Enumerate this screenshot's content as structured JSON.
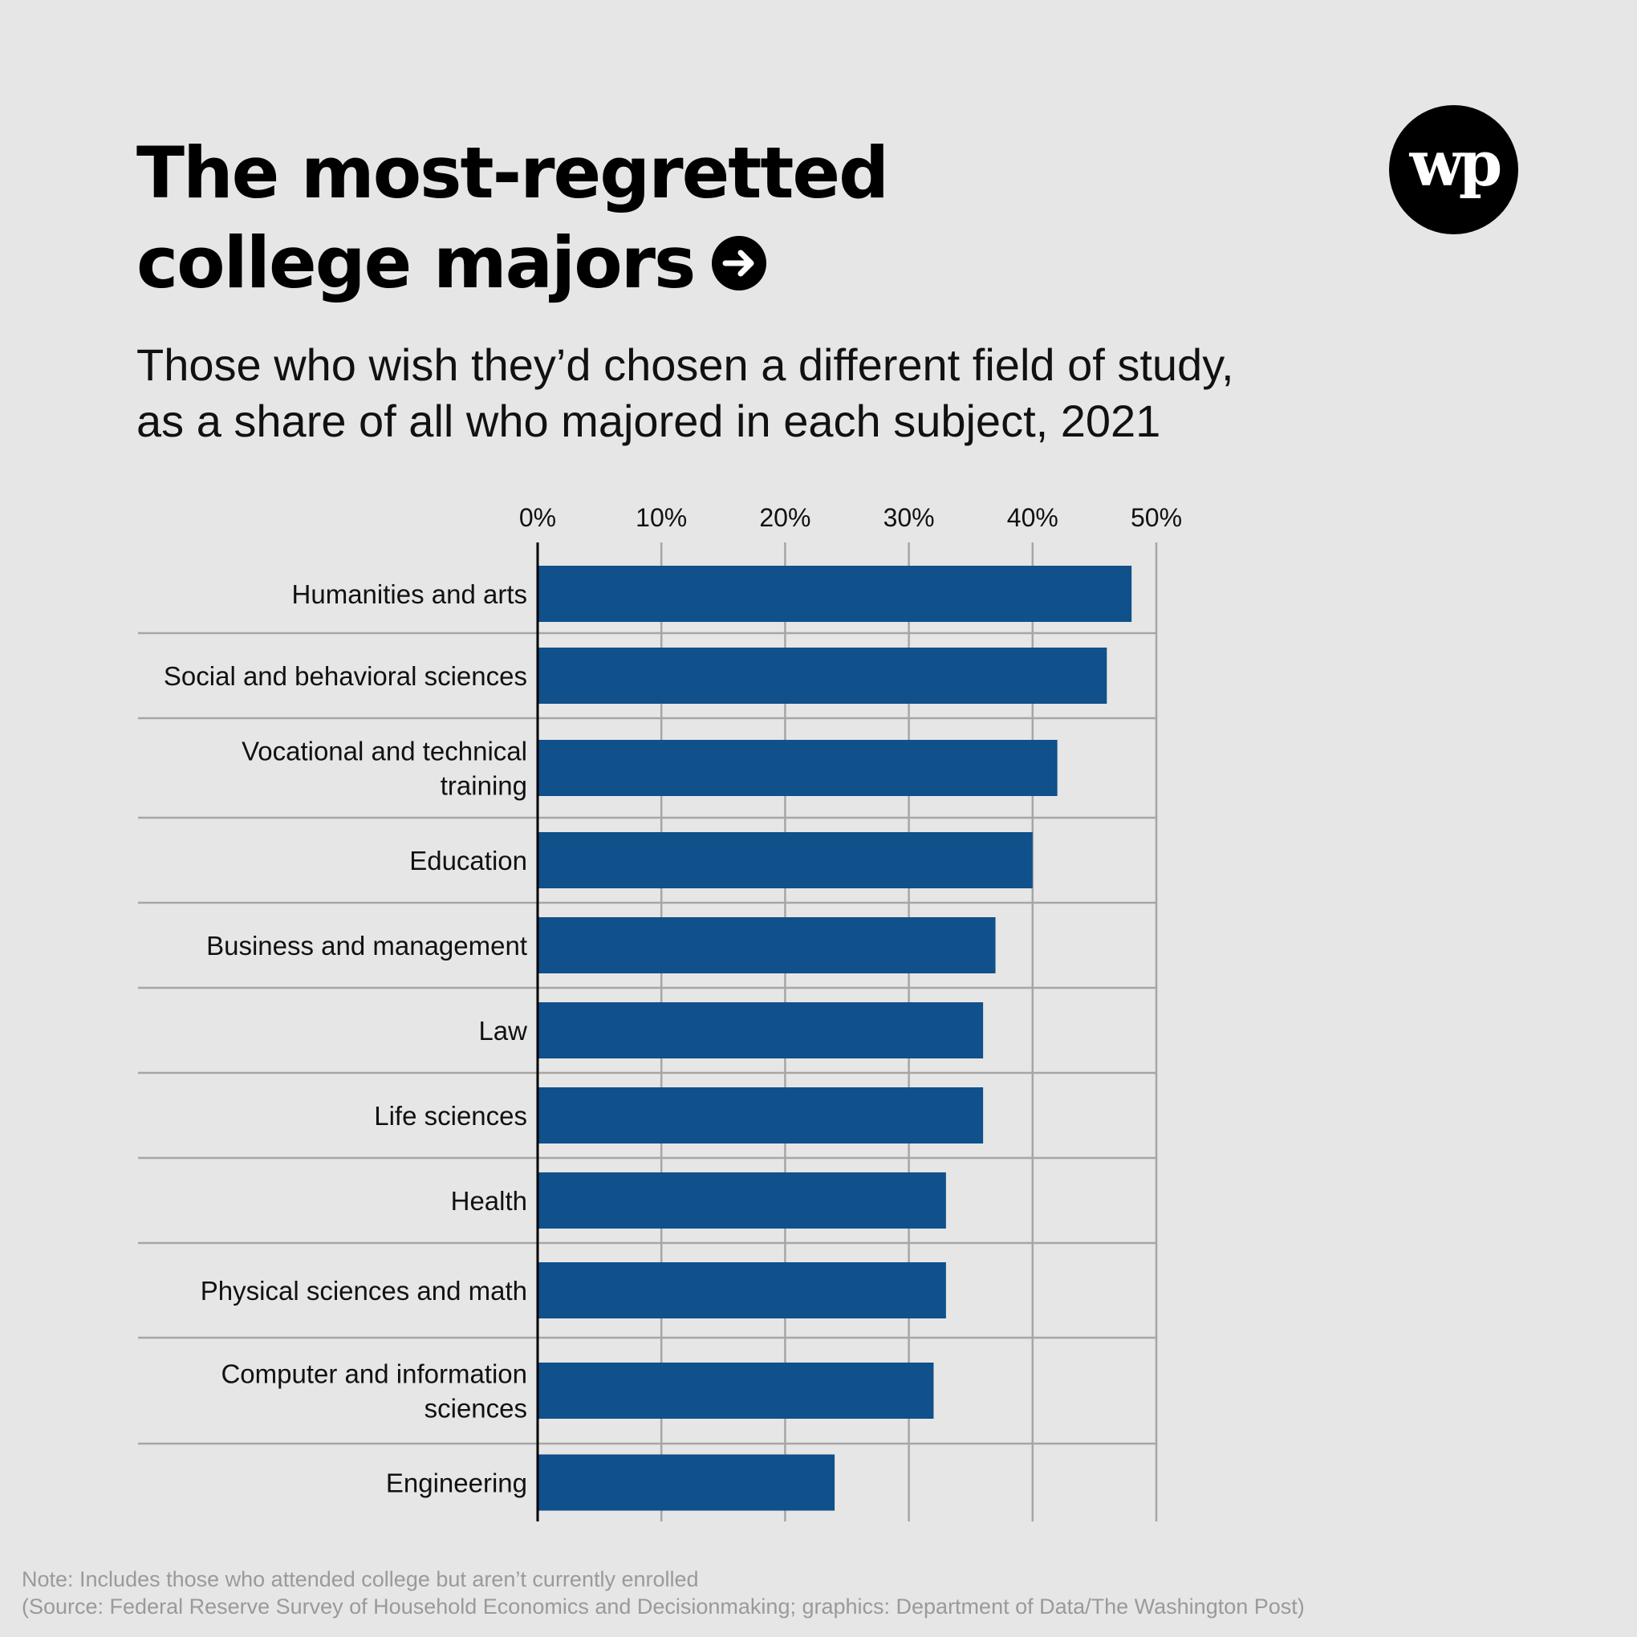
{
  "header": {
    "title_line1": "The most-regretted",
    "title_line2": "college majors",
    "arrow_icon": "arrow-right-circle-icon",
    "logo_icon": "washington-post-logo-icon",
    "logo_text": "wp"
  },
  "subtitle": {
    "line1": "Those who wish they’d chosen a different field of study,",
    "line2": "as a share of all who majored in each subject, 2021"
  },
  "footer": {
    "note": "Note: Includes those who attended college but aren’t currently enrolled",
    "source": "(Source: Federal Reserve Survey of Household Economics and Decisionmaking; graphics: Department of Data/The Washington Post)"
  },
  "colors": {
    "bar": "#10508b",
    "grid": "#a6a6a6",
    "axis": "#000000",
    "background": "#e6e6e6"
  },
  "chart_data": {
    "type": "bar",
    "orientation": "horizontal",
    "xlim": [
      0,
      50
    ],
    "ticks": [
      0,
      10,
      20,
      30,
      40,
      50
    ],
    "tick_labels": [
      "0%",
      "10%",
      "20%",
      "30%",
      "40%",
      "50%"
    ],
    "categories": [
      [
        "Humanities and arts"
      ],
      [
        "Social and behavioral sciences"
      ],
      [
        "Vocational and technical",
        "training"
      ],
      [
        "Education"
      ],
      [
        "Business and management"
      ],
      [
        "Law"
      ],
      [
        "Life sciences"
      ],
      [
        "Health"
      ],
      [
        "Physical sciences and math"
      ],
      [
        "Computer and information",
        "sciences"
      ],
      [
        "Engineering"
      ]
    ],
    "values": [
      48,
      46,
      42,
      40,
      37,
      36,
      36,
      33,
      33,
      32,
      24
    ],
    "grid": true,
    "legend": "none"
  }
}
